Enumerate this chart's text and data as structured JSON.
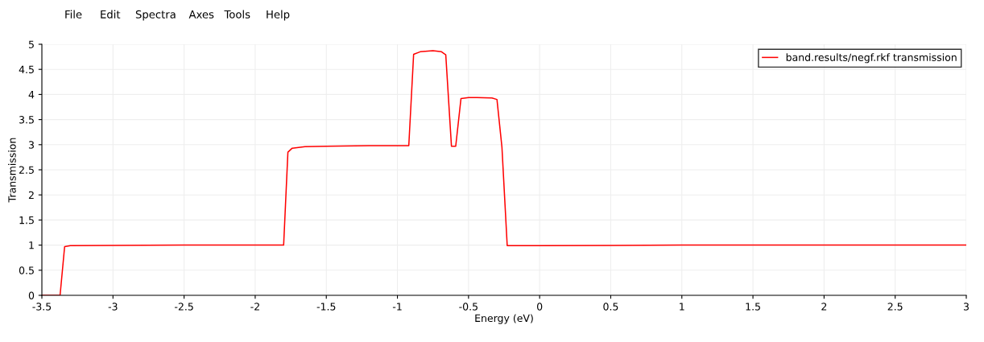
{
  "chart_data": {
    "type": "line",
    "xlabel": "Energy (eV)",
    "ylabel": "Transmission",
    "annotations": [
      "File",
      "Edit",
      "Spectra",
      "Axes",
      "Tools",
      "Help"
    ],
    "series": [
      {
        "name": "band.results/negf.rkf transmission",
        "color": "#ff0000",
        "x": [
          -3.5,
          -3.372,
          -3.34,
          -3.3,
          -2.5,
          -1.8,
          -1.77,
          -1.74,
          -1.65,
          -1.5,
          -1.2,
          -0.92,
          -0.886,
          -0.84,
          -0.75,
          -0.69,
          -0.66,
          -0.62,
          -0.59,
          -0.553,
          -0.5,
          -0.44,
          -0.335,
          -0.3,
          -0.265,
          -0.228,
          0,
          1,
          2,
          3
        ],
        "values": [
          0,
          0,
          0.97,
          0.99,
          1.0,
          1.0,
          2.85,
          2.93,
          2.96,
          2.97,
          2.98,
          2.98,
          4.8,
          4.85,
          4.87,
          4.85,
          4.79,
          2.97,
          2.97,
          3.92,
          3.94,
          3.94,
          3.93,
          3.9,
          2.95,
          0.99,
          0.99,
          1.0,
          1.0,
          1.0
        ]
      }
    ],
    "xlim": [
      -3.5,
      3
    ],
    "ylim": [
      0,
      5
    ],
    "xticks": [
      -3.5,
      -3,
      -2.5,
      -2,
      -1.5,
      -1,
      -0.5,
      0,
      0.5,
      1,
      1.5,
      2,
      2.5,
      3
    ],
    "yticks": [
      0,
      0.5,
      1,
      1.5,
      2,
      2.5,
      3,
      3.5,
      4,
      4.5,
      5
    ],
    "grid": true,
    "legend": "top right",
    "marker": "none",
    "line_style": "solid"
  }
}
